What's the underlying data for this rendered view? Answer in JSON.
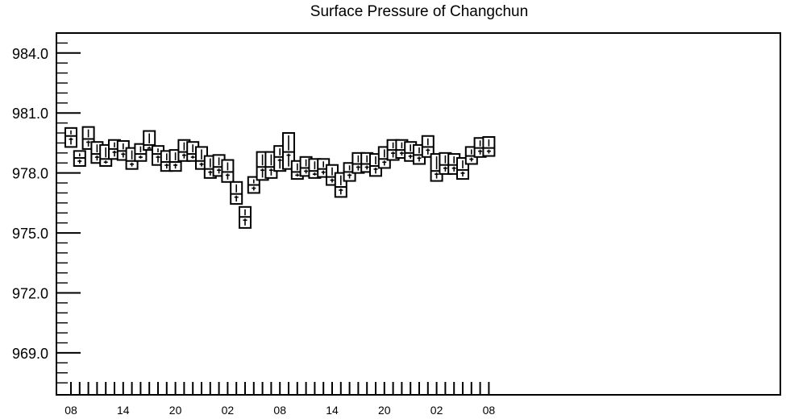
{
  "chart_data": {
    "type": "boxplot",
    "title": "Surface Pressure of Changchun",
    "xlabel": "",
    "ylabel": "",
    "ylim": [
      966.9,
      985.0
    ],
    "y_ticks": [
      "984.0",
      "981.0",
      "978.0",
      "975.0",
      "972.0",
      "969.0"
    ],
    "x_tick_labels": [
      "08",
      "14",
      "20",
      "02",
      "08",
      "14",
      "20",
      "02",
      "08"
    ],
    "boxes": [
      {
        "x": "08",
        "top": 980.25,
        "bottom": 979.3,
        "median": 979.85
      },
      {
        "x": "",
        "top": 979.1,
        "bottom": 978.35,
        "median": 978.75
      },
      {
        "x": "",
        "top": 980.3,
        "bottom": 979.2,
        "median": 979.7
      },
      {
        "x": "",
        "top": 979.55,
        "bottom": 978.5,
        "median": 978.95
      },
      {
        "x": "",
        "top": 979.4,
        "bottom": 978.35,
        "median": 978.7
      },
      {
        "x": "14",
        "top": 979.65,
        "bottom": 978.7,
        "median": 979.2
      },
      {
        "x": "",
        "top": 979.6,
        "bottom": 978.65,
        "median": 979.1
      },
      {
        "x": "",
        "top": 979.25,
        "bottom": 978.2,
        "median": 978.6
      },
      {
        "x": "",
        "top": 979.45,
        "bottom": 978.6,
        "median": 978.95
      },
      {
        "x": "",
        "top": 980.1,
        "bottom": 979.15,
        "median": 979.4
      },
      {
        "x": "",
        "top": 979.35,
        "bottom": 978.4,
        "median": 978.95
      },
      {
        "x": "20",
        "top": 979.1,
        "bottom": 978.1,
        "median": 978.55
      },
      {
        "x": "",
        "top": 979.15,
        "bottom": 978.1,
        "median": 978.55
      },
      {
        "x": "",
        "top": 979.65,
        "bottom": 978.6,
        "median": 979.05
      },
      {
        "x": "",
        "top": 979.55,
        "bottom": 978.6,
        "median": 978.95
      },
      {
        "x": "",
        "top": 979.3,
        "bottom": 978.2,
        "median": 978.6
      },
      {
        "x": "",
        "top": 978.85,
        "bottom": 977.75,
        "median": 978.2
      },
      {
        "x": "02",
        "top": 978.9,
        "bottom": 977.85,
        "median": 978.3
      },
      {
        "x": "",
        "top": 978.65,
        "bottom": 977.55,
        "median": 978.05
      },
      {
        "x": "",
        "top": 977.55,
        "bottom": 976.45,
        "median": 976.95
      },
      {
        "x": "",
        "top": 976.3,
        "bottom": 975.25,
        "median": 975.8
      },
      {
        "x": "",
        "top": 977.8,
        "bottom": 977.0,
        "median": 977.4
      },
      {
        "x": "",
        "top": 979.05,
        "bottom": 977.65,
        "median": 978.3
      },
      {
        "x": "08",
        "top": 979.05,
        "bottom": 977.75,
        "median": 978.3
      },
      {
        "x": "",
        "top": 979.35,
        "bottom": 978.1,
        "median": 978.8
      },
      {
        "x": "",
        "top": 980.0,
        "bottom": 978.2,
        "median": 979.05
      },
      {
        "x": "",
        "top": 978.6,
        "bottom": 977.7,
        "median": 978.05
      },
      {
        "x": "",
        "top": 978.8,
        "bottom": 977.85,
        "median": 978.25
      },
      {
        "x": "",
        "top": 978.7,
        "bottom": 977.75,
        "median": 978.1
      },
      {
        "x": "14",
        "top": 978.7,
        "bottom": 977.8,
        "median": 978.2
      },
      {
        "x": "",
        "top": 978.4,
        "bottom": 977.4,
        "median": 977.8
      },
      {
        "x": "",
        "top": 978.0,
        "bottom": 976.8,
        "median": 977.3
      },
      {
        "x": "",
        "top": 978.5,
        "bottom": 977.6,
        "median": 978.05
      },
      {
        "x": "",
        "top": 979.0,
        "bottom": 978.0,
        "median": 978.45
      },
      {
        "x": "",
        "top": 979.0,
        "bottom": 978.05,
        "median": 978.45
      },
      {
        "x": "20",
        "top": 978.95,
        "bottom": 977.85,
        "median": 978.35
      },
      {
        "x": "",
        "top": 979.3,
        "bottom": 978.25,
        "median": 978.7
      },
      {
        "x": "",
        "top": 979.65,
        "bottom": 978.65,
        "median": 979.15
      },
      {
        "x": "",
        "top": 979.65,
        "bottom": 978.75,
        "median": 979.15
      },
      {
        "x": "",
        "top": 979.55,
        "bottom": 978.6,
        "median": 979.0
      },
      {
        "x": "",
        "top": 979.4,
        "bottom": 978.45,
        "median": 978.9
      },
      {
        "x": "",
        "top": 979.85,
        "bottom": 978.8,
        "median": 979.3
      },
      {
        "x": "02",
        "top": 978.95,
        "bottom": 977.6,
        "median": 978.1
      },
      {
        "x": "",
        "top": 979.0,
        "bottom": 977.95,
        "median": 978.4
      },
      {
        "x": "",
        "top": 978.95,
        "bottom": 977.95,
        "median": 978.4
      },
      {
        "x": "",
        "top": 978.75,
        "bottom": 977.7,
        "median": 978.15
      },
      {
        "x": "",
        "top": 979.3,
        "bottom": 978.45,
        "median": 978.85
      },
      {
        "x": "",
        "top": 979.75,
        "bottom": 978.8,
        "median": 979.25
      },
      {
        "x": "08",
        "top": 979.8,
        "bottom": 978.85,
        "median": 979.25
      }
    ]
  }
}
